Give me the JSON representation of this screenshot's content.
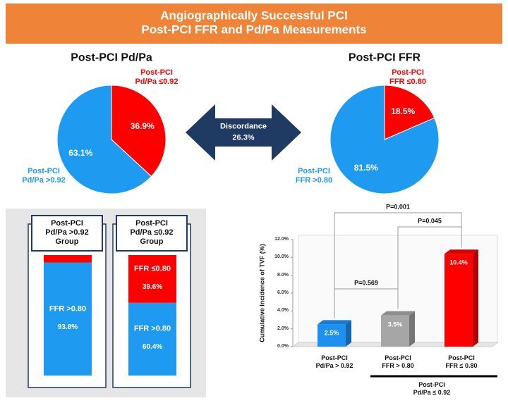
{
  "header": {
    "title": "Angiographically Successful PCI\nPost-PCI FFR and Pd/Pa Measurements"
  },
  "discordance": {
    "label": "Discordance",
    "value": "26.3%"
  },
  "chart_data": [
    {
      "type": "pie",
      "title": "Post-PCI Pd/Pa",
      "categories": [
        "Post-PCI\nPd/Pa ≤0.92",
        "Post-PCI\nPd/Pa >0.92"
      ],
      "values": [
        36.9,
        63.1
      ],
      "value_labels": [
        "36.9%",
        "63.1%"
      ],
      "colors": [
        "#ff0000",
        "#1e9af0"
      ]
    },
    {
      "type": "pie",
      "title": "Post-PCI FFR",
      "categories": [
        "Post-PCI\nFFR ≤0.80",
        "Post-PCI\nFFR >0.80"
      ],
      "values": [
        18.5,
        81.5
      ],
      "value_labels": [
        "18.5%",
        "81.5%"
      ],
      "colors": [
        "#ff0000",
        "#1e9af0"
      ]
    },
    {
      "type": "bar",
      "stacked": true,
      "categories": [
        "Post-PCI\nPd/Pa >0.92\nGroup",
        "Post-PCI\nPd/Pa ≤0.92\nGroup"
      ],
      "ylim": [
        0,
        100
      ],
      "series": [
        {
          "name": "FFR >0.80",
          "color": "#1e9af0",
          "values": [
            93.8,
            60.4
          ],
          "value_labels": [
            "93.8%",
            "60.4%"
          ]
        },
        {
          "name": "FFR ≤0.80",
          "color": "#ff0000",
          "values": [
            6.2,
            39.6
          ],
          "value_labels": [
            null,
            "39.6%"
          ]
        }
      ]
    },
    {
      "type": "bar",
      "ylabel": "Cumulative Incidence of TVF (%)",
      "categories": [
        "Post-PCI\nPd/Pa > 0.92",
        "Post-PCI\nFFR > 0.80",
        "Post-PCI\nFFR ≤ 0.80"
      ],
      "values": [
        2.5,
        3.5,
        10.4
      ],
      "value_labels": [
        "2.5%",
        "3.5%",
        "10.4%"
      ],
      "colors": [
        "#1e90f0",
        "#a6a6a6",
        "#ff0000"
      ],
      "ylim": [
        0,
        12
      ],
      "yticks": [
        {
          "value": 0,
          "label": "0.0%"
        },
        {
          "value": 2,
          "label": "2.0%"
        },
        {
          "value": 4,
          "label": "4.0%"
        },
        {
          "value": 6,
          "label": "6.0%"
        },
        {
          "value": 8,
          "label": "8.0%"
        },
        {
          "value": 10,
          "label": "10.0%"
        },
        {
          "value": 12,
          "label": "12.0%"
        }
      ],
      "annotations": [
        "P=0.569",
        "P=0.045",
        "P=0.001"
      ],
      "group_label": "Post-PCI\nPd/Pa ≤ 0.92"
    }
  ]
}
